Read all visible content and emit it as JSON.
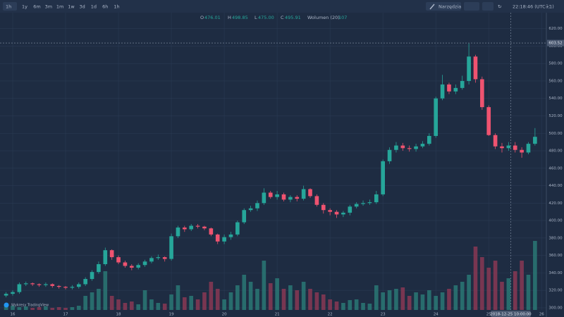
{
  "toolbar": {
    "interval": "1h",
    "ranges": [
      "1y",
      "6m",
      "3m",
      "1m",
      "1w",
      "3d",
      "1d",
      "6h",
      "1h"
    ],
    "tools": "Narzędzia",
    "clock": "22:18:46 (UTC+1)"
  },
  "legend": {
    "o_label": "O",
    "o": "476.01",
    "h_label": "H",
    "h": "498.85",
    "l_label": "L",
    "l": "475.00",
    "c_label": "C",
    "c": "495.91",
    "volume_label": "Wolumen (20)",
    "volume": "107"
  },
  "watermark": "Wykresy TradingView",
  "chart_data": {
    "type": "candlestick",
    "x": [
      15.875,
      16,
      16.125,
      16.25,
      16.375,
      16.5,
      16.625,
      16.75,
      16.875,
      17,
      17.125,
      17.25,
      17.375,
      17.5,
      17.625,
      17.75,
      17.875,
      18,
      18.125,
      18.25,
      18.375,
      18.5,
      18.625,
      18.75,
      18.875,
      19,
      19.125,
      19.25,
      19.375,
      19.5,
      19.625,
      19.75,
      19.875,
      20,
      20.125,
      20.25,
      20.375,
      20.5,
      20.625,
      20.75,
      20.875,
      21,
      21.125,
      21.25,
      21.375,
      21.5,
      21.625,
      21.75,
      21.875,
      22,
      22.125,
      22.25,
      22.375,
      22.5,
      22.625,
      22.75,
      22.875,
      23,
      23.125,
      23.25,
      23.375,
      23.5,
      23.625,
      23.75,
      23.875,
      24,
      24.125,
      24.25,
      24.375,
      24.5,
      24.625,
      24.75,
      24.875,
      25,
      25.125,
      25.25,
      25.375,
      25.5,
      25.625,
      25.75,
      25.875
    ],
    "open": [
      314,
      316,
      318,
      327,
      328,
      327,
      326,
      327,
      325,
      324,
      323,
      324,
      327,
      333,
      341,
      350,
      366,
      358,
      352,
      348,
      346,
      349,
      353,
      357,
      358,
      356,
      382,
      392,
      390,
      394,
      393,
      391,
      384,
      376,
      381,
      384,
      398,
      412,
      414,
      420,
      432,
      427,
      430,
      424,
      427,
      425,
      436,
      428,
      418,
      412,
      410,
      407,
      409,
      416,
      419,
      420,
      421,
      430,
      468,
      481,
      486,
      483,
      482,
      485,
      488,
      497,
      540,
      556,
      548,
      552,
      560,
      588,
      562,
      530,
      498,
      485,
      483,
      486,
      481,
      478,
      488
    ],
    "high": [
      318,
      320,
      329,
      330,
      329,
      328,
      329,
      328,
      326,
      325,
      326,
      329,
      335,
      343,
      353,
      369,
      367,
      360,
      354,
      350,
      351,
      355,
      359,
      361,
      359,
      385,
      394,
      394,
      396,
      396,
      394,
      392,
      385,
      384,
      387,
      400,
      414,
      417,
      423,
      437,
      434,
      434,
      432,
      429,
      429,
      440,
      437,
      430,
      420,
      414,
      412,
      411,
      418,
      421,
      423,
      424,
      434,
      470,
      484,
      490,
      489,
      486,
      488,
      491,
      500,
      542,
      567,
      558,
      556,
      566,
      603,
      590,
      565,
      532,
      500,
      489,
      490,
      490,
      484,
      490,
      506
    ],
    "low": [
      312,
      314,
      316,
      325,
      325,
      324,
      324,
      323,
      322,
      321,
      321,
      322,
      325,
      331,
      339,
      348,
      355,
      350,
      346,
      343,
      344,
      347,
      351,
      355,
      353,
      354,
      380,
      387,
      388,
      391,
      389,
      382,
      373,
      373,
      378,
      382,
      396,
      410,
      411,
      418,
      425,
      424,
      422,
      421,
      422,
      423,
      426,
      416,
      408,
      406,
      403,
      404,
      406,
      414,
      417,
      418,
      419,
      428,
      465,
      478,
      480,
      479,
      479,
      483,
      486,
      495,
      538,
      545,
      545,
      550,
      556,
      558,
      527,
      497,
      482,
      478,
      480,
      478,
      472,
      476,
      486
    ],
    "close": [
      316,
      318,
      327,
      328,
      327,
      326,
      327,
      325,
      324,
      323,
      324,
      327,
      333,
      341,
      350,
      366,
      358,
      352,
      348,
      346,
      349,
      353,
      357,
      358,
      356,
      382,
      392,
      390,
      394,
      393,
      391,
      384,
      376,
      381,
      384,
      398,
      412,
      414,
      420,
      432,
      427,
      430,
      424,
      427,
      425,
      436,
      428,
      418,
      412,
      410,
      407,
      409,
      416,
      419,
      420,
      421,
      430,
      468,
      481,
      486,
      483,
      482,
      485,
      488,
      497,
      540,
      556,
      548,
      552,
      560,
      588,
      562,
      530,
      498,
      485,
      483,
      486,
      481,
      478,
      488,
      496
    ],
    "volume": [
      8,
      6,
      4,
      5,
      3,
      4,
      5,
      3,
      4,
      3,
      4,
      6,
      20,
      25,
      30,
      55,
      20,
      15,
      10,
      12,
      8,
      28,
      15,
      10,
      9,
      22,
      35,
      18,
      20,
      15,
      25,
      40,
      30,
      15,
      25,
      35,
      50,
      40,
      30,
      70,
      38,
      45,
      30,
      35,
      28,
      40,
      30,
      25,
      22,
      15,
      12,
      10,
      14,
      15,
      10,
      9,
      35,
      25,
      28,
      30,
      32,
      20,
      25,
      22,
      28,
      20,
      25,
      30,
      35,
      40,
      50,
      90,
      75,
      60,
      70,
      40,
      45,
      55,
      70,
      50,
      98
    ],
    "up_color": "#26a69a",
    "down_color": "#ef5370",
    "volume_up_color": "#2a7d78",
    "volume_down_color": "#8e3a55",
    "xlim": [
      15.76,
      26.09
    ],
    "xticks": [
      16,
      17,
      18,
      19,
      20,
      21,
      22,
      23,
      24,
      25,
      26
    ],
    "ylim": [
      297.5,
      638.3
    ],
    "yticks": [
      {
        "value": 300,
        "label": "300.00"
      },
      {
        "value": 320,
        "label": "320.00"
      },
      {
        "value": 340,
        "label": "340.00"
      },
      {
        "value": 360,
        "label": "360.00"
      },
      {
        "value": 380,
        "label": "380.00"
      },
      {
        "value": 400,
        "label": "400.00"
      },
      {
        "value": 420,
        "label": "420.00"
      },
      {
        "value": 440,
        "label": "440.00"
      },
      {
        "value": 460,
        "label": "460.00"
      },
      {
        "value": 480,
        "label": "480.00"
      },
      {
        "value": 500,
        "label": "500.00"
      },
      {
        "value": 520,
        "label": "520.00"
      },
      {
        "value": 540,
        "label": "540.00"
      },
      {
        "value": 560,
        "label": "560.00"
      },
      {
        "value": 580,
        "label": "580.00"
      },
      {
        "value": 600,
        "label": "600.00"
      },
      {
        "value": 620,
        "label": "620.00"
      }
    ],
    "volume_ylim": [
      0,
      110
    ],
    "grid": true,
    "crosshair_x": {
      "value": 25.4167,
      "label": "2018-12-25 10:00:00"
    },
    "crosshair_y": 603.52
  }
}
